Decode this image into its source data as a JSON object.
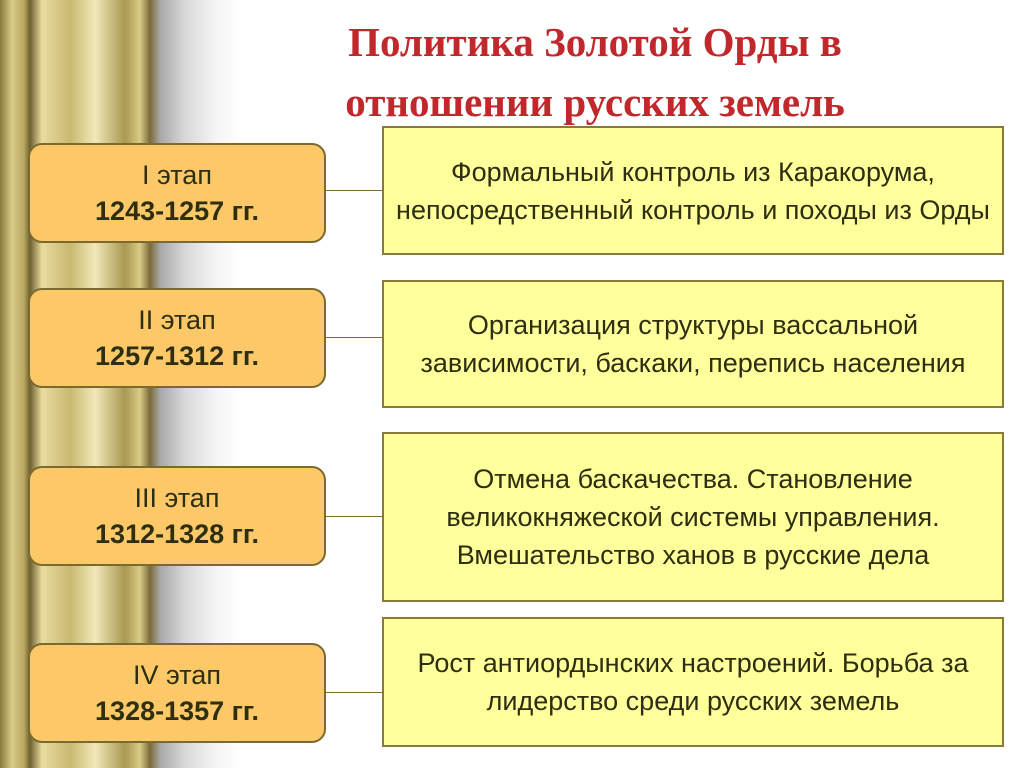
{
  "title": "Политика Золотой Орды в отношении русских земель",
  "stages": [
    {
      "label": "I этап",
      "years": "1243-1257 гг.",
      "description": "Формальный контроль из Каракорума, непосредственный контроль и походы из Орды"
    },
    {
      "label": "II этап",
      "years": "1257-1312 гг.",
      "description": "Организация структуры вассальной зависимости, баскаки, перепись населения"
    },
    {
      "label": "III этап",
      "years": "1312-1328 гг.",
      "description": "Отмена баскачества. Становление великокняжеской системы управления. Вмешательство ханов в русские дела"
    },
    {
      "label": "IV этап",
      "years": "1328-1357 гг.",
      "description": "Рост антиордынских настроений. Борьба за лидерство среди русских земель"
    }
  ],
  "colors": {
    "title": "#c0282b",
    "stage_fill": "#fcc868",
    "description_fill": "#ffff9c",
    "text": "#2e2e10"
  }
}
